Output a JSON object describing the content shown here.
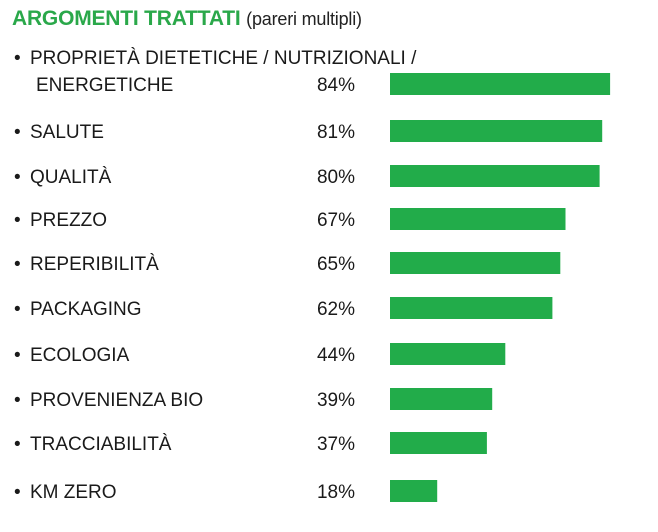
{
  "header": {
    "title": "ARGOMENTI TRATTATI",
    "subtitle": "(pareri multipli)"
  },
  "colors": {
    "accent": "#2aa84a",
    "bar": "#22ac4a",
    "text": "#1a1a1a"
  },
  "chart_data": {
    "type": "bar",
    "orientation": "horizontal",
    "title": "ARGOMENTI TRATTATI",
    "subtitle": "(pareri multipli)",
    "categories": [
      [
        "PROPRIETÀ DIETETICHE / NUTRIZIONALI /",
        "ENERGETICHE"
      ],
      [
        "SALUTE"
      ],
      [
        "QUALITÀ"
      ],
      [
        "PREZZO"
      ],
      [
        "REPERIBILITÀ"
      ],
      [
        "PACKAGING"
      ],
      [
        "ECOLOGIA"
      ],
      [
        "PROVENIENZA BIO"
      ],
      [
        "TRACCIABILITÀ"
      ],
      [
        "KM ZERO"
      ]
    ],
    "values": [
      84,
      81,
      80,
      67,
      65,
      62,
      44,
      39,
      37,
      18
    ],
    "value_labels": [
      "84%",
      "81%",
      "80%",
      "67%",
      "65%",
      "62%",
      "44%",
      "39%",
      "37%",
      "18%"
    ],
    "xlim": [
      0,
      100
    ],
    "grid": false,
    "legend": "none",
    "bullet": "•"
  }
}
